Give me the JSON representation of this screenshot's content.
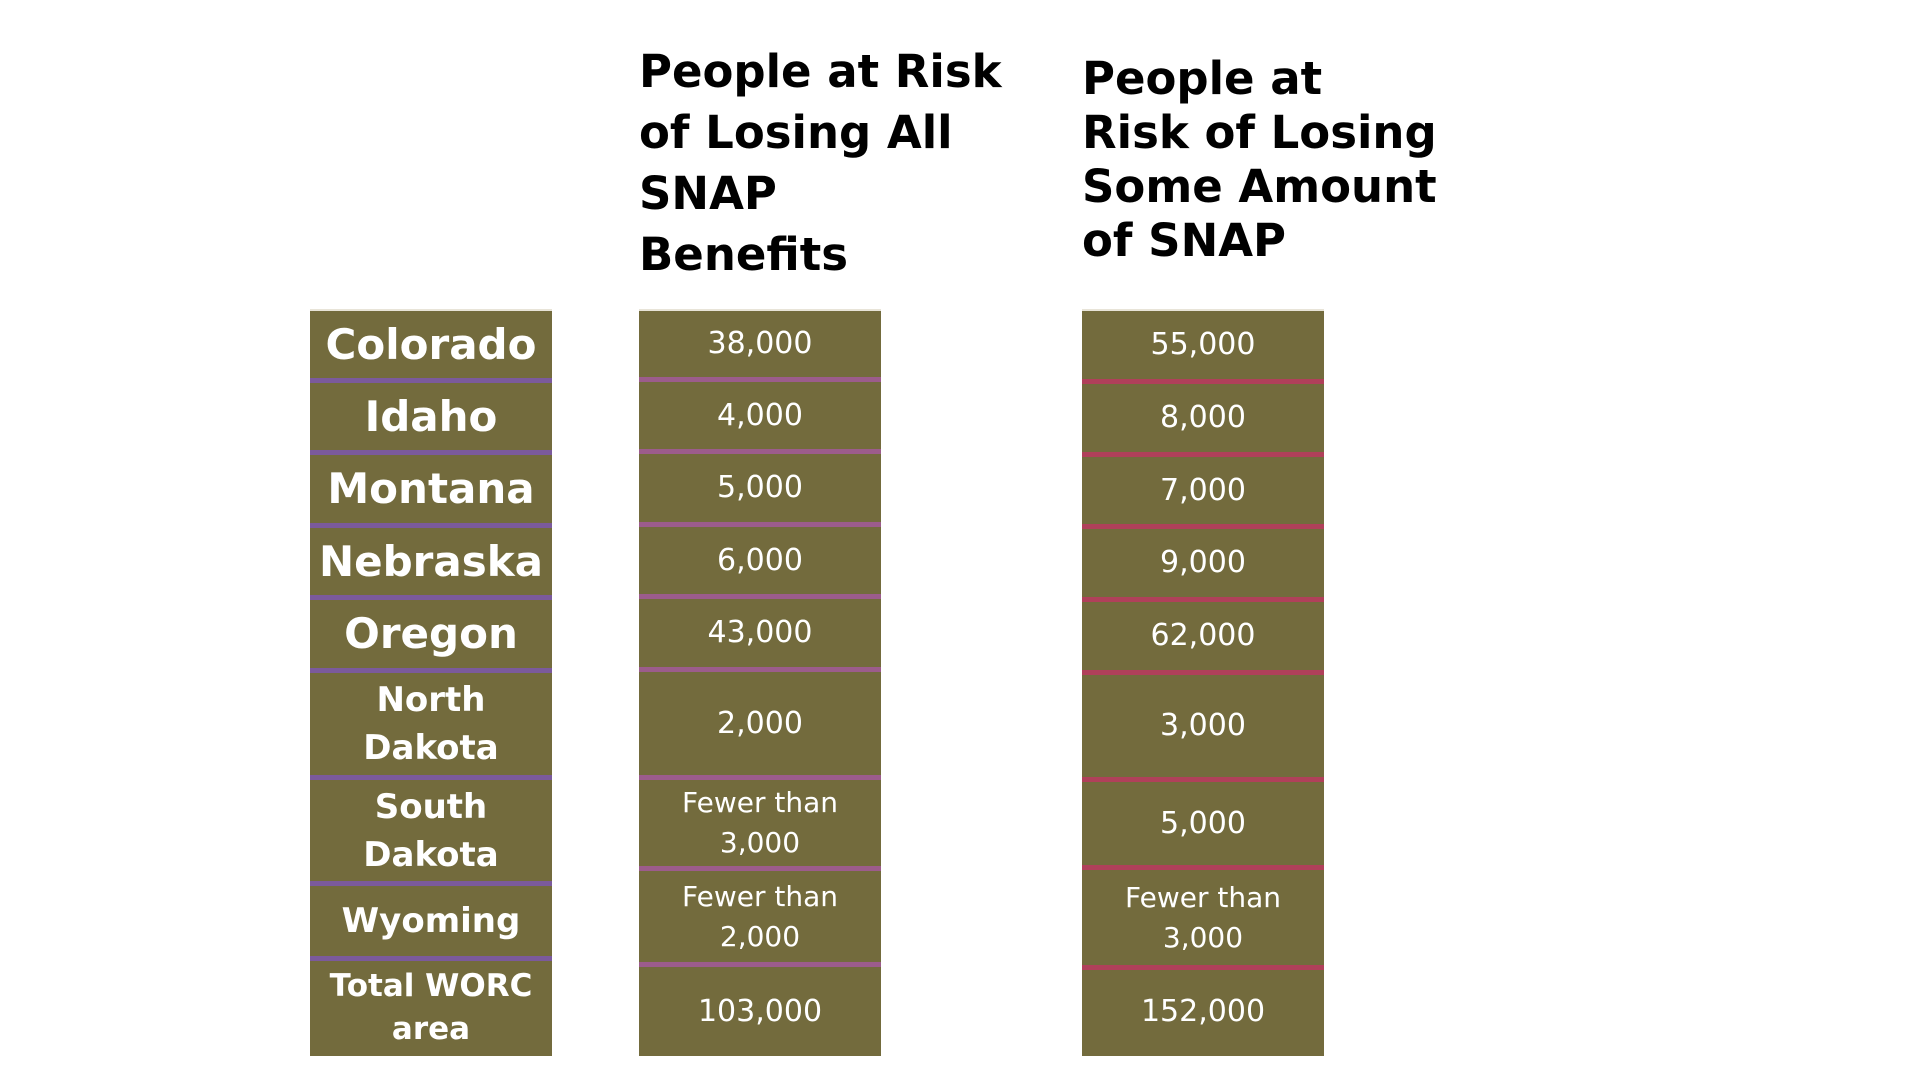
{
  "headers": {
    "all_lines": [
      "People at Risk",
      "of Losing All",
      "SNAP",
      "Benefits"
    ],
    "some_lines": [
      "People at",
      "Risk of Losing",
      "Some Amount",
      "of SNAP"
    ]
  },
  "rows": [
    {
      "state": "Colorado",
      "all": "38,000",
      "some": "55,000"
    },
    {
      "state": "Idaho",
      "all": "4,000",
      "some": "8,000"
    },
    {
      "state": "Montana",
      "all": "5,000",
      "some": "7,000"
    },
    {
      "state": "Nebraska",
      "all": "6,000",
      "some": "9,000"
    },
    {
      "state": "Oregon",
      "all": "43,000",
      "some": "62,000"
    },
    {
      "state": "North Dakota",
      "state_lines": [
        "North",
        "Dakota"
      ],
      "all": "2,000",
      "some": "3,000"
    },
    {
      "state": "South Dakota",
      "state_lines": [
        "South",
        "Dakota"
      ],
      "all": "Fewer than 3,000",
      "all_lines": [
        "Fewer than",
        "3,000"
      ],
      "some": "5,000"
    },
    {
      "state": "Wyoming",
      "all": "Fewer than 2,000",
      "all_lines": [
        "Fewer than",
        "2,000"
      ],
      "some": "Fewer than 3,000",
      "some_lines": [
        "Fewer than",
        "3,000"
      ]
    },
    {
      "state": "Total WORC area",
      "state_lines": [
        "Total WORC",
        "area"
      ],
      "all": "103,000",
      "some": "152,000"
    }
  ],
  "colors": {
    "cell_background": "#736b3d",
    "state_divider": "#7b5a9c",
    "all_divider": "#9c5c8c",
    "some_divider": "#b0405a",
    "cell_text": "#ffffff"
  }
}
